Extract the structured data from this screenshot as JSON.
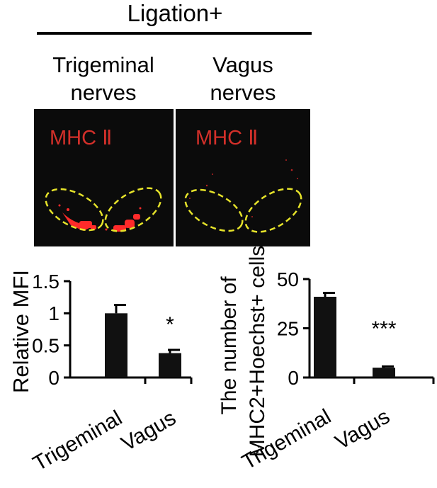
{
  "header": {
    "condition": "Ligation+"
  },
  "panels": [
    {
      "label_line1": "Trigeminal",
      "label_line2": "nerves",
      "stain": "MHC Ⅱ",
      "signal": "strong red staining along the lower edge inside both ellipses"
    },
    {
      "label_line1": "Vagus",
      "label_line2": "nerves",
      "stain": "MHC Ⅱ",
      "signal": "sparse faint red specks"
    }
  ],
  "colors": {
    "stain_text": "#d4302a",
    "panel_bg": "#0b0b0b",
    "ellipse": "#e6e32a",
    "signal": "#ff2a2a",
    "bar": "#111111"
  },
  "chart_data": [
    {
      "type": "bar",
      "categories": [
        "Trigeminal",
        "Vagus"
      ],
      "values": [
        1.0,
        0.38
      ],
      "errors": [
        0.13,
        0.05
      ],
      "annotations": [
        "",
        "*"
      ],
      "ylabel": "Relative MFI",
      "ylim": [
        0,
        1.5
      ],
      "yticks": [
        0,
        0.5,
        1,
        1.5
      ],
      "ytick_labels": [
        "0",
        "0.5",
        "1",
        "1.5"
      ]
    },
    {
      "type": "bar",
      "categories": [
        "Trigeminal",
        "Vagus"
      ],
      "values": [
        41,
        5
      ],
      "errors": [
        2,
        0.6
      ],
      "annotations": [
        "",
        "***"
      ],
      "ylabel_line1": "The number of",
      "ylabel_line2": "MHC2+Hoechst+ cells",
      "ylim": [
        0,
        50
      ],
      "yticks": [
        0,
        25,
        50
      ],
      "ytick_labels": [
        "0",
        "25",
        "50"
      ]
    }
  ]
}
